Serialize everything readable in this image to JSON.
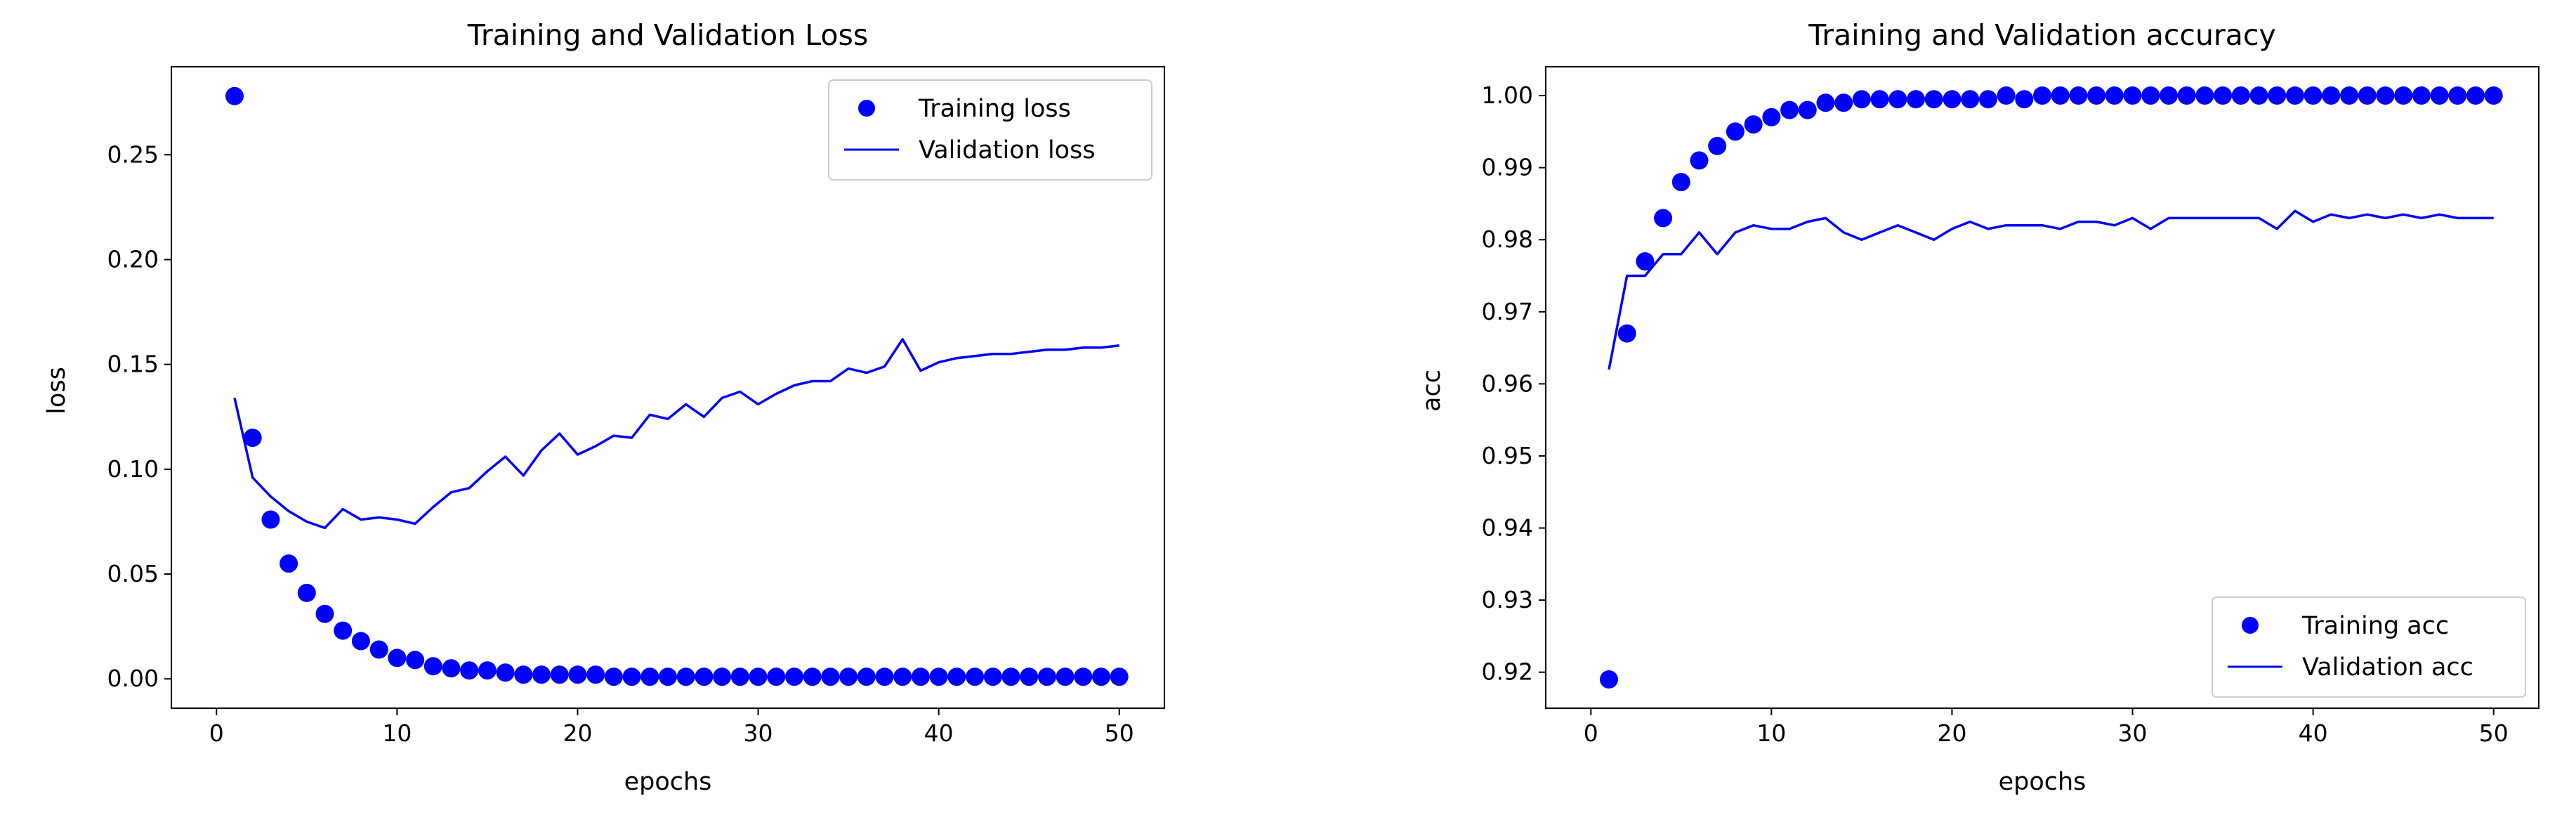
{
  "colors": {
    "series": "#0000ff",
    "axes": "#000000",
    "background": "#ffffff",
    "legend_border": "#cccccc"
  },
  "chart_data": [
    {
      "type": "line",
      "title": "Training and Validation Loss",
      "xlabel": "epochs",
      "ylabel": "loss",
      "xlim": [
        -2.5,
        52.5
      ],
      "ylim": [
        -0.014,
        0.292
      ],
      "xticks": [
        0,
        10,
        20,
        30,
        40,
        50
      ],
      "xtick_labels": [
        "0",
        "10",
        "20",
        "30",
        "40",
        "50"
      ],
      "yticks": [
        0.0,
        0.05,
        0.1,
        0.15,
        0.2,
        0.25
      ],
      "ytick_labels": [
        "0.00",
        "0.05",
        "0.10",
        "0.15",
        "0.20",
        "0.25"
      ],
      "grid": false,
      "legend_position": "upper right",
      "x": [
        1,
        2,
        3,
        4,
        5,
        6,
        7,
        8,
        9,
        10,
        11,
        12,
        13,
        14,
        15,
        16,
        17,
        18,
        19,
        20,
        21,
        22,
        23,
        24,
        25,
        26,
        27,
        28,
        29,
        30,
        31,
        32,
        33,
        34,
        35,
        36,
        37,
        38,
        39,
        40,
        41,
        42,
        43,
        44,
        45,
        46,
        47,
        48,
        49,
        50
      ],
      "series": [
        {
          "name": "Training loss",
          "style": "markers",
          "values": [
            0.278,
            0.115,
            0.076,
            0.055,
            0.041,
            0.031,
            0.023,
            0.018,
            0.014,
            0.01,
            0.009,
            0.006,
            0.005,
            0.004,
            0.004,
            0.003,
            0.002,
            0.002,
            0.002,
            0.002,
            0.002,
            0.001,
            0.001,
            0.001,
            0.001,
            0.001,
            0.001,
            0.001,
            0.001,
            0.001,
            0.001,
            0.001,
            0.001,
            0.001,
            0.001,
            0.001,
            0.001,
            0.001,
            0.001,
            0.001,
            0.001,
            0.001,
            0.001,
            0.001,
            0.001,
            0.001,
            0.001,
            0.001,
            0.001,
            0.001
          ]
        },
        {
          "name": "Validation loss",
          "style": "line",
          "values": [
            0.134,
            0.096,
            0.087,
            0.08,
            0.075,
            0.072,
            0.081,
            0.076,
            0.077,
            0.076,
            0.074,
            0.082,
            0.089,
            0.091,
            0.099,
            0.106,
            0.097,
            0.109,
            0.117,
            0.107,
            0.111,
            0.116,
            0.115,
            0.126,
            0.124,
            0.131,
            0.125,
            0.134,
            0.137,
            0.131,
            0.136,
            0.14,
            0.142,
            0.142,
            0.148,
            0.146,
            0.149,
            0.162,
            0.147,
            0.151,
            0.153,
            0.154,
            0.155,
            0.155,
            0.156,
            0.157,
            0.157,
            0.158,
            0.158,
            0.159
          ]
        }
      ]
    },
    {
      "type": "line",
      "title": "Training and Validation accuracy",
      "xlabel": "epochs",
      "ylabel": "acc",
      "xlim": [
        -2.5,
        52.5
      ],
      "ylim": [
        0.915,
        1.004
      ],
      "xticks": [
        0,
        10,
        20,
        30,
        40,
        50
      ],
      "xtick_labels": [
        "0",
        "10",
        "20",
        "30",
        "40",
        "50"
      ],
      "yticks": [
        0.92,
        0.93,
        0.94,
        0.95,
        0.96,
        0.97,
        0.98,
        0.99,
        1.0
      ],
      "ytick_labels": [
        "0.92",
        "0.93",
        "0.94",
        "0.95",
        "0.96",
        "0.97",
        "0.98",
        "0.99",
        "1.00"
      ],
      "grid": false,
      "legend_position": "lower right",
      "x": [
        1,
        2,
        3,
        4,
        5,
        6,
        7,
        8,
        9,
        10,
        11,
        12,
        13,
        14,
        15,
        16,
        17,
        18,
        19,
        20,
        21,
        22,
        23,
        24,
        25,
        26,
        27,
        28,
        29,
        30,
        31,
        32,
        33,
        34,
        35,
        36,
        37,
        38,
        39,
        40,
        41,
        42,
        43,
        44,
        45,
        46,
        47,
        48,
        49,
        50
      ],
      "series": [
        {
          "name": "Training acc",
          "style": "markers",
          "values": [
            0.919,
            0.967,
            0.977,
            0.983,
            0.988,
            0.991,
            0.993,
            0.995,
            0.996,
            0.997,
            0.998,
            0.998,
            0.999,
            0.999,
            0.9995,
            0.9995,
            0.9995,
            0.9995,
            0.9995,
            0.9995,
            0.9995,
            0.9995,
            1.0,
            0.9995,
            1.0,
            1.0,
            1.0,
            1.0,
            1.0,
            1.0,
            1.0,
            1.0,
            1.0,
            1.0,
            1.0,
            1.0,
            1.0,
            1.0,
            1.0,
            1.0,
            1.0,
            1.0,
            1.0,
            1.0,
            1.0,
            1.0,
            1.0,
            1.0,
            1.0,
            1.0
          ]
        },
        {
          "name": "Validation acc",
          "style": "line",
          "values": [
            0.962,
            0.975,
            0.975,
            0.978,
            0.978,
            0.981,
            0.978,
            0.981,
            0.982,
            0.9815,
            0.9815,
            0.9825,
            0.983,
            0.981,
            0.98,
            0.981,
            0.982,
            0.981,
            0.98,
            0.9815,
            0.9825,
            0.9815,
            0.982,
            0.982,
            0.982,
            0.9815,
            0.9825,
            0.9825,
            0.982,
            0.983,
            0.9815,
            0.983,
            0.983,
            0.983,
            0.983,
            0.983,
            0.983,
            0.9815,
            0.984,
            0.9825,
            0.9835,
            0.983,
            0.9835,
            0.983,
            0.9835,
            0.983,
            0.9835,
            0.983,
            0.983,
            0.983
          ]
        }
      ]
    }
  ]
}
